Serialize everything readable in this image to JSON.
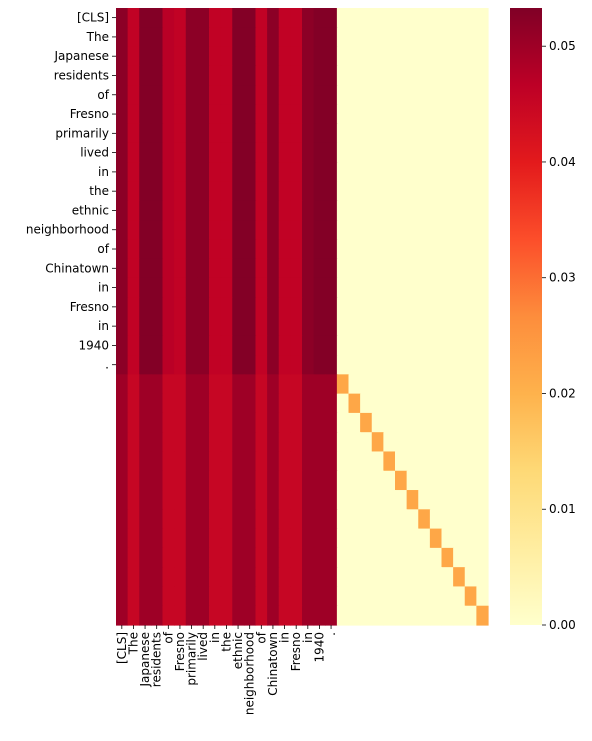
{
  "chart_data": {
    "type": "heatmap",
    "title": "",
    "xlabel": "",
    "ylabel": "",
    "row_labels": [
      "[CLS]",
      "The",
      "Japanese",
      "residents",
      "of",
      "Fresno",
      "primarily",
      "lived",
      "in",
      "the",
      "ethnic",
      "neighborhood",
      "of",
      "Chinatown",
      "in",
      "Fresno",
      "in",
      "1940",
      "."
    ],
    "col_labels": [
      "[CLS]",
      "The",
      "Japanese",
      "residents",
      "of",
      "Fresno",
      "primarily",
      "lived",
      "in",
      "the",
      "ethnic",
      "neighborhood",
      "of",
      "Chinatown",
      "in",
      "Fresno",
      "in",
      "1940",
      "."
    ],
    "grid_rows": 32,
    "grid_cols": 32,
    "labeled_rows": 19,
    "labeled_cols": 19,
    "top_block_column_values": [
      0.052,
      0.046,
      0.053,
      0.053,
      0.047,
      0.046,
      0.052,
      0.052,
      0.046,
      0.046,
      0.053,
      0.053,
      0.046,
      0.052,
      0.046,
      0.046,
      0.052,
      0.053,
      0.053
    ],
    "bottom_block_column_values": [
      0.05,
      0.045,
      0.05,
      0.05,
      0.045,
      0.045,
      0.05,
      0.05,
      0.045,
      0.045,
      0.05,
      0.05,
      0.045,
      0.05,
      0.045,
      0.045,
      0.05,
      0.05,
      0.05
    ],
    "padding_value": 0.0,
    "diagonal_value": 0.022,
    "vmin": 0.0,
    "vmax": 0.0533,
    "colormap": "YlOrRd",
    "colorbar": {
      "ticks": [
        0.0,
        0.01,
        0.02,
        0.03,
        0.04,
        0.05
      ],
      "tick_labels": [
        "0.00",
        "0.01",
        "0.02",
        "0.03",
        "0.04",
        "0.05"
      ]
    }
  }
}
